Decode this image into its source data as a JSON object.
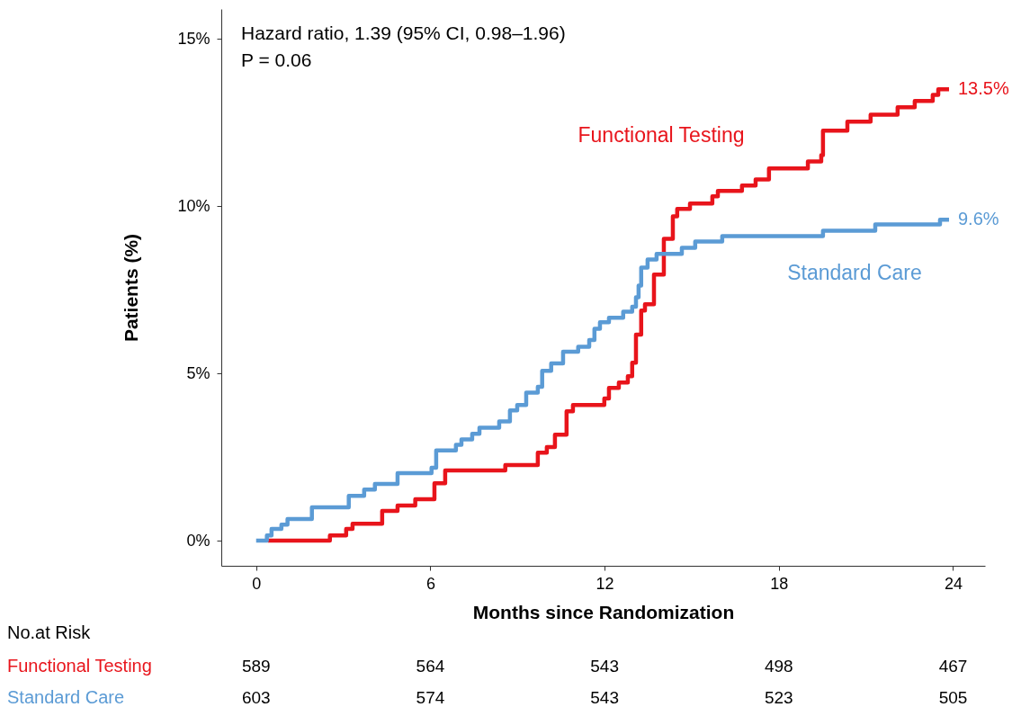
{
  "chart_data": {
    "type": "step",
    "xlabel": "Months since Randomization",
    "ylabel": "Patients (%)",
    "xlim": [
      -1.2,
      25.1
    ],
    "xticks": [
      0,
      6,
      12,
      18,
      24
    ],
    "ylim": [
      -0.75,
      15.9
    ],
    "yticks": [
      {
        "value": 0,
        "label": "0%"
      },
      {
        "value": 5,
        "label": "5%"
      },
      {
        "value": 10,
        "label": "10%"
      },
      {
        "value": 15,
        "label": "15%"
      }
    ],
    "grid": false,
    "marker": "none",
    "line_style": "solid",
    "series": [
      {
        "name": "Functional Testing",
        "color": "#e8141b",
        "x": [
          0.4,
          2.54,
          3.1,
          3.32,
          4.34,
          4.87,
          5.48,
          6.14,
          6.51,
          8.58,
          9.7,
          10.01,
          10.29,
          10.69,
          10.91,
          11.99,
          12.15,
          12.49,
          12.8,
          12.95,
          13.08,
          13.26,
          13.39,
          13.7,
          14.04,
          14.35,
          14.5,
          14.94,
          15.71,
          15.9,
          16.73,
          17.2,
          17.66,
          19.0,
          19.46,
          19.52,
          20.36,
          21.16,
          22.09,
          22.68,
          23.3,
          23.49,
          23.86
        ],
        "values": [
          0,
          0.16,
          0.35,
          0.51,
          0.89,
          1.05,
          1.24,
          1.72,
          2.1,
          2.26,
          2.63,
          2.8,
          3.17,
          3.87,
          4.06,
          4.25,
          4.57,
          4.73,
          4.92,
          5.32,
          6.16,
          6.88,
          7.07,
          7.96,
          9.03,
          9.7,
          9.92,
          10.08,
          10.3,
          10.46,
          10.62,
          10.8,
          11.13,
          11.34,
          11.53,
          12.26,
          12.53,
          12.74,
          12.96,
          13.15,
          13.33,
          13.5,
          13.5
        ]
      },
      {
        "name": "Standard Care",
        "color": "#5b9bd5",
        "x": [
          0,
          0.37,
          0.53,
          0.87,
          1.08,
          1.92,
          3.19,
          3.72,
          4.09,
          4.87,
          6.04,
          6.2,
          6.88,
          7.07,
          7.44,
          7.69,
          8.37,
          8.74,
          8.99,
          9.3,
          9.7,
          9.85,
          10.16,
          10.57,
          11.09,
          11.47,
          11.65,
          11.84,
          12.15,
          12.64,
          12.95,
          13.08,
          13.17,
          13.26,
          13.48,
          13.79,
          14.66,
          15.12,
          16.05,
          19.52,
          21.32,
          23.55,
          23.86
        ],
        "values": [
          0,
          0.16,
          0.35,
          0.48,
          0.65,
          1.0,
          1.34,
          1.53,
          1.7,
          2.02,
          2.18,
          2.7,
          2.87,
          3.03,
          3.2,
          3.38,
          3.57,
          3.9,
          4.06,
          4.43,
          4.6,
          5.08,
          5.3,
          5.65,
          5.8,
          6.0,
          6.34,
          6.53,
          6.67,
          6.85,
          7.0,
          7.28,
          7.63,
          8.17,
          8.41,
          8.58,
          8.76,
          8.95,
          9.11,
          9.27,
          9.46,
          9.6,
          9.6
        ]
      }
    ],
    "annotations": [
      "Hazard ratio, 1.39 (95% CI, 0.98–1.96)",
      "P = 0.06",
      {
        "text": "13.5%",
        "x": 23.86,
        "y": 13.5
      },
      {
        "text": "9.6%",
        "x": 23.86,
        "y": 9.6
      },
      "No.at Risk",
      "Functional Testing",
      "589",
      "564",
      "543",
      "498",
      "467",
      "Standard Care",
      "603",
      "574",
      "543",
      "523",
      "505"
    ]
  }
}
